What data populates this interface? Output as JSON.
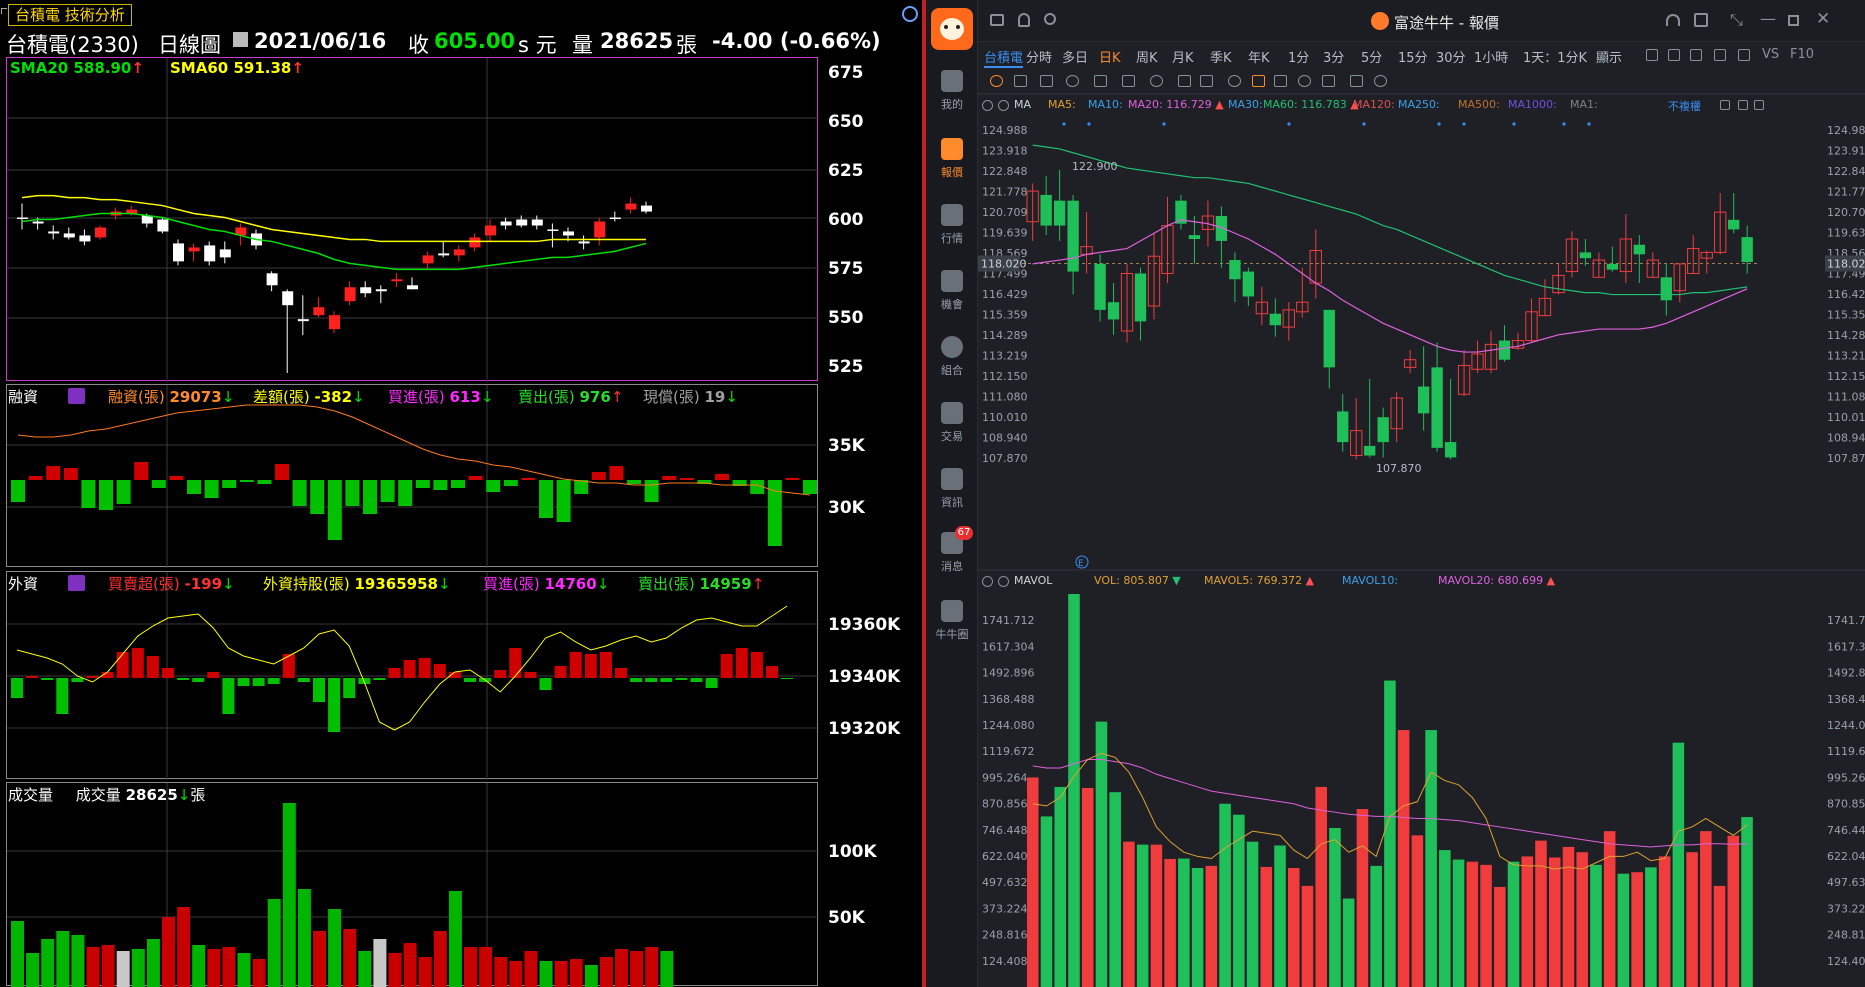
{
  "left": {
    "window_tab": "台積電 技術分析",
    "stock_name": "台積電(2330)",
    "chart_type": "日線圖",
    "date": "2021/06/16",
    "close_label": "收",
    "close_value": "605.00",
    "close_suffix": "s 元",
    "volume_label": "量",
    "volume_value": "28625",
    "volume_unit": "張",
    "change": "-4.00 (-0.66%)",
    "sma20": {
      "label": "SMA20",
      "value": "588.90",
      "arrow": "up"
    },
    "sma60": {
      "label": "SMA60",
      "value": "591.38",
      "arrow": "up"
    },
    "price_axis": [
      "675",
      "650",
      "625",
      "600",
      "575",
      "550",
      "525"
    ],
    "margin_panel": {
      "title": "融資",
      "items": [
        {
          "label": "融資(張)",
          "value": "29073",
          "arrow": "down",
          "color": "#ff8c28"
        },
        {
          "label": "差額(張)",
          "value": "-382",
          "arrow": "down",
          "color": "#ffff00"
        },
        {
          "label": "買進(張)",
          "value": "613",
          "arrow": "down",
          "color": "#ff28ff"
        },
        {
          "label": "賣出(張)",
          "value": "976",
          "arrow": "up",
          "color": "#28dc28"
        },
        {
          "label": "現償(張)",
          "value": "19",
          "arrow": "down",
          "color": "#a0a0a0"
        }
      ],
      "axis": [
        "35K",
        "30K"
      ]
    },
    "foreign_panel": {
      "title": "外資",
      "items": [
        {
          "label": "買賣超(張)",
          "value": "-199",
          "arrow": "down",
          "color": "#ff3030"
        },
        {
          "label": "外資持股(張)",
          "value": "19365958",
          "arrow": "down",
          "color": "#ffff00"
        },
        {
          "label": "買進(張)",
          "value": "14760",
          "arrow": "down",
          "color": "#ff28ff"
        },
        {
          "label": "賣出(張)",
          "value": "14959",
          "arrow": "up",
          "color": "#28dc28"
        }
      ],
      "axis": [
        "19360K",
        "19340K",
        "19320K"
      ]
    },
    "volume_panel": {
      "title": "成交量",
      "item_label": "成交量",
      "item_value": "28625",
      "item_arrow": "down",
      "item_unit": "張",
      "axis": [
        "100K",
        "50K"
      ]
    },
    "colors": {
      "up": "#ff2020",
      "down": "#00e000",
      "sma20": "#00e000",
      "sma60": "#ffff00"
    }
  },
  "right": {
    "app_title": "富途牛牛 - 報價",
    "sidebar": [
      {
        "label": "我的",
        "icon": "user-icon"
      },
      {
        "label": "報價",
        "icon": "quote-icon",
        "active": true
      },
      {
        "label": "行情",
        "icon": "market-icon"
      },
      {
        "label": "機會",
        "icon": "chance-icon"
      },
      {
        "label": "組合",
        "icon": "pie-icon"
      },
      {
        "label": "交易",
        "icon": "trade-icon"
      },
      {
        "label": "資訊",
        "icon": "news-icon"
      },
      {
        "label": "消息",
        "icon": "message-icon",
        "badge": "67"
      },
      {
        "label": "牛牛圈",
        "icon": "circle-icon"
      }
    ],
    "tabs": [
      "台積電",
      "分時",
      "多日",
      "日K",
      "周K",
      "月K",
      "季K",
      "年K",
      "1分",
      "3分",
      "5分",
      "15分",
      "30分",
      "1小時",
      "1天：1分K",
      "顯示"
    ],
    "active_tab": "日K",
    "ma_row": {
      "name": "MA",
      "items": [
        {
          "label": "MA5:",
          "value": "",
          "color": "#e0a030"
        },
        {
          "label": "MA10:",
          "value": "",
          "color": "#3aa0e8"
        },
        {
          "label": "MA20:",
          "value": "116.729",
          "color": "#e060e0",
          "arrow": "▲"
        },
        {
          "label": "MA30:",
          "value": "",
          "color": "#3aa0e8"
        },
        {
          "label": "MA60:",
          "value": "116.783",
          "color": "#20c070",
          "arrow": "▲"
        },
        {
          "label": "MA120:",
          "value": "",
          "color": "#e05050"
        },
        {
          "label": "MA250:",
          "value": "",
          "color": "#3aa0e8"
        },
        {
          "label": "MA500:",
          "value": "",
          "color": "#c07030"
        },
        {
          "label": "MA1000:",
          "value": "",
          "color": "#7050e0"
        },
        {
          "label": "MA1:",
          "value": "",
          "color": "#808080"
        }
      ],
      "adjust": "不複權"
    },
    "price_axis": [
      "124.988",
      "123.918",
      "122.848",
      "121.778",
      "120.709",
      "119.639",
      "118.569",
      "117.499",
      "116.429",
      "115.359",
      "114.289",
      "113.219",
      "112.150",
      "111.080",
      "110.010",
      "108.940",
      "107.870"
    ],
    "current_price": "118.020",
    "high_label": "122.900",
    "low_label": "107.870",
    "vol_row": {
      "name": "MAVOL",
      "items": [
        {
          "label": "VOL:",
          "value": "805.807",
          "color": "#e0a030",
          "arrow": "▼",
          "arrow_color": "#20c070"
        },
        {
          "label": "MAVOL5:",
          "value": "769.372",
          "color": "#e0a030",
          "arrow": "▲",
          "arrow_color": "#ff5050"
        },
        {
          "label": "MAVOL10:",
          "value": "",
          "color": "#3aa0e8"
        },
        {
          "label": "MAVOL20:",
          "value": "680.699",
          "color": "#e060e0",
          "arrow": "▲",
          "arrow_color": "#ff5050"
        }
      ]
    },
    "vol_axis": [
      "1741.712",
      "1617.304",
      "1492.896",
      "1368.488",
      "1244.080",
      "1119.672",
      "995.264",
      "870.856",
      "746.448",
      "622.040",
      "497.632",
      "373.224",
      "248.816",
      "124.408"
    ],
    "colors": {
      "up": "#f03c3c",
      "down": "#1fc05a",
      "bg": "#1e2026"
    }
  }
}
